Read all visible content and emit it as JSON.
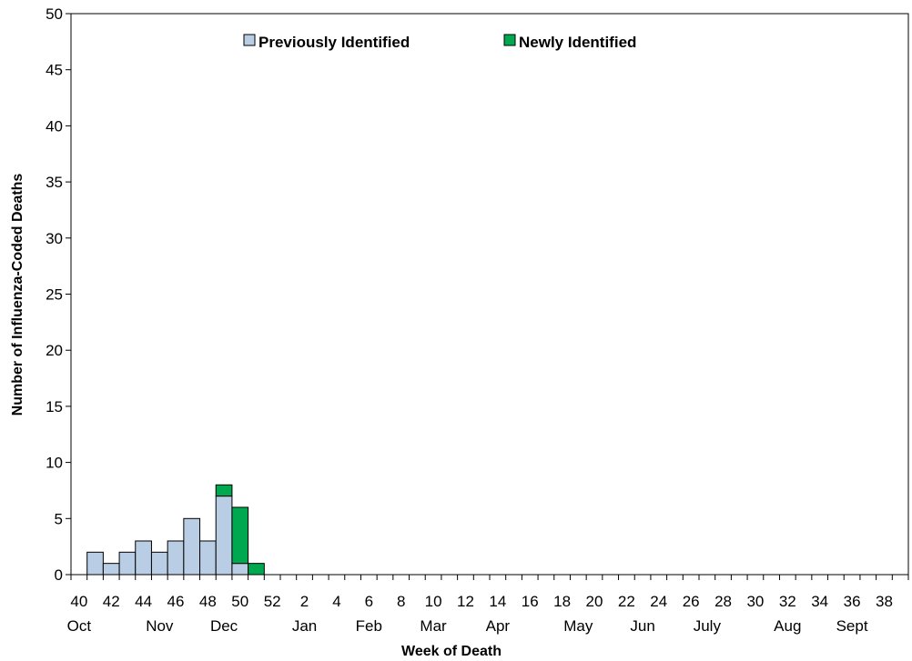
{
  "chart_data": {
    "type": "bar",
    "stacked": true,
    "title": "",
    "xlabel": "Week of Death",
    "ylabel": "Number of Influenza-Coded Deaths",
    "ylim": [
      0,
      50
    ],
    "y_ticks": [
      0,
      5,
      10,
      15,
      20,
      25,
      30,
      35,
      40,
      45,
      50
    ],
    "grid": false,
    "legend_position": "top",
    "weeks": [
      40,
      41,
      42,
      43,
      44,
      45,
      46,
      47,
      48,
      49,
      50,
      51,
      52,
      1,
      2,
      3,
      4,
      5,
      6,
      7,
      8,
      9,
      10,
      11,
      12,
      13,
      14,
      15,
      16,
      17,
      18,
      19,
      20,
      21,
      22,
      23,
      24,
      25,
      26,
      27,
      28,
      29,
      30,
      31,
      32,
      33,
      34,
      35,
      36,
      37,
      38,
      39
    ],
    "week_tick_labels": [
      "40",
      "42",
      "44",
      "46",
      "48",
      "50",
      "52",
      "2",
      "4",
      "6",
      "8",
      "10",
      "12",
      "14",
      "16",
      "18",
      "20",
      "22",
      "24",
      "26",
      "28",
      "30",
      "32",
      "34",
      "36",
      "38"
    ],
    "months": [
      {
        "label": "Oct",
        "week": 40
      },
      {
        "label": "Nov",
        "week": 45
      },
      {
        "label": "Dec",
        "week": 49
      },
      {
        "label": "Jan",
        "week": 2
      },
      {
        "label": "Feb",
        "week": 6
      },
      {
        "label": "Mar",
        "week": 10
      },
      {
        "label": "Apr",
        "week": 14
      },
      {
        "label": "May",
        "week": 19
      },
      {
        "label": "Jun",
        "week": 23
      },
      {
        "label": "July",
        "week": 27
      },
      {
        "label": "Aug",
        "week": 32
      },
      {
        "label": "Sept",
        "week": 36
      }
    ],
    "series": [
      {
        "name": "Previously Identified",
        "color": "#b9cde5",
        "values": [
          0,
          2,
          1,
          2,
          3,
          2,
          3,
          5,
          3,
          7,
          1,
          0,
          0,
          0,
          0,
          0,
          0,
          0,
          0,
          0,
          0,
          0,
          0,
          0,
          0,
          0,
          0,
          0,
          0,
          0,
          0,
          0,
          0,
          0,
          0,
          0,
          0,
          0,
          0,
          0,
          0,
          0,
          0,
          0,
          0,
          0,
          0,
          0,
          0,
          0,
          0,
          0
        ]
      },
      {
        "name": "Newly Identified",
        "color": "#00a84f",
        "values": [
          0,
          0,
          0,
          0,
          0,
          0,
          0,
          0,
          0,
          1,
          5,
          1,
          0,
          0,
          0,
          0,
          0,
          0,
          0,
          0,
          0,
          0,
          0,
          0,
          0,
          0,
          0,
          0,
          0,
          0,
          0,
          0,
          0,
          0,
          0,
          0,
          0,
          0,
          0,
          0,
          0,
          0,
          0,
          0,
          0,
          0,
          0,
          0,
          0,
          0,
          0,
          0
        ]
      }
    ]
  }
}
